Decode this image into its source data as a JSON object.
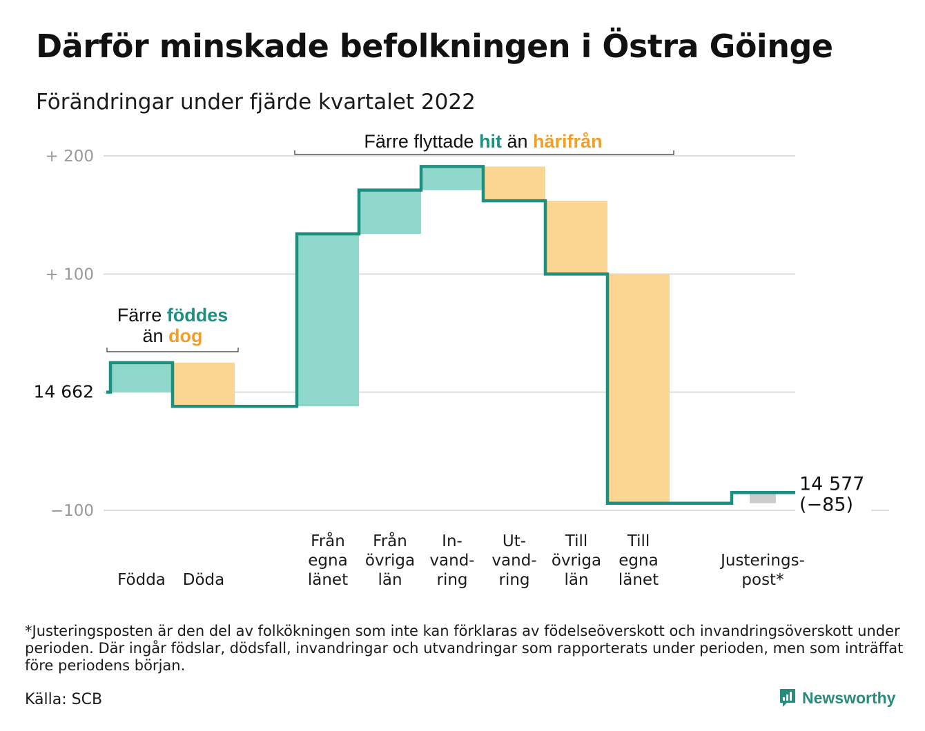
{
  "title": "Därför minskade befolkningen i Östra Göinge",
  "subtitle": "Förändringar under fjärde kvartalet 2022",
  "footnote": "*Justeringsposten är den del av folkökningen som inte kan förklaras av födelseöverskott och invandringsöverskott under perioden. Där ingår födslar, dödsfall, invandringar och utvandringar som rapporterats under perioden, men som inträffat före periodens början.",
  "source": "Källa: SCB",
  "brand": "Newsworthy",
  "colors": {
    "increase": "#8fd6cb",
    "decrease": "#fbd592",
    "adjustment": "#cccccc",
    "line": "#1b9081",
    "accent_teal": "#1b9081",
    "accent_orange": "#f0a028",
    "grid": "#dddddd",
    "axis_text": "#999999"
  },
  "annotations": {
    "births": {
      "line1": "Färre",
      "hl1": "föddes",
      "line2": "än",
      "hl2": "dog"
    },
    "migration": {
      "pre": "Färre flyttade",
      "hl1": "hit",
      "mid": "än",
      "hl2": "härifrån"
    }
  },
  "chart_data": {
    "type": "waterfall",
    "start_value": 14662,
    "start_label": "14 662",
    "end_value": 14577,
    "end_label": "14 577",
    "end_change_label": "(−85)",
    "ylim": [
      -100,
      200
    ],
    "yticks": [
      {
        "value": 200,
        "label": "+ 200"
      },
      {
        "value": 100,
        "label": "+ 100"
      },
      {
        "value": 0,
        "label": "14 662"
      },
      {
        "value": -100,
        "label": "−100"
      }
    ],
    "steps": [
      {
        "label_lines": [
          "Födda"
        ],
        "change": 25,
        "kind": "increase"
      },
      {
        "label_lines": [
          "Döda"
        ],
        "change": -37,
        "kind": "decrease"
      },
      {
        "label_lines": [
          "Från",
          "egna",
          "länet"
        ],
        "change": 146,
        "kind": "increase"
      },
      {
        "label_lines": [
          "Från",
          "övriga",
          "län"
        ],
        "change": 37,
        "kind": "increase"
      },
      {
        "label_lines": [
          "In-",
          "vand-",
          "ring"
        ],
        "change": 20,
        "kind": "increase"
      },
      {
        "label_lines": [
          "Ut-",
          "vand-",
          "ring"
        ],
        "change": -29,
        "kind": "decrease"
      },
      {
        "label_lines": [
          "Till",
          "övriga",
          "län"
        ],
        "change": -62,
        "kind": "decrease"
      },
      {
        "label_lines": [
          "Till",
          "egna",
          "länet"
        ],
        "change": -194,
        "kind": "decrease"
      },
      {
        "label_lines": [
          "Justerings-",
          "post*"
        ],
        "change": 9,
        "kind": "adjustment"
      }
    ]
  }
}
